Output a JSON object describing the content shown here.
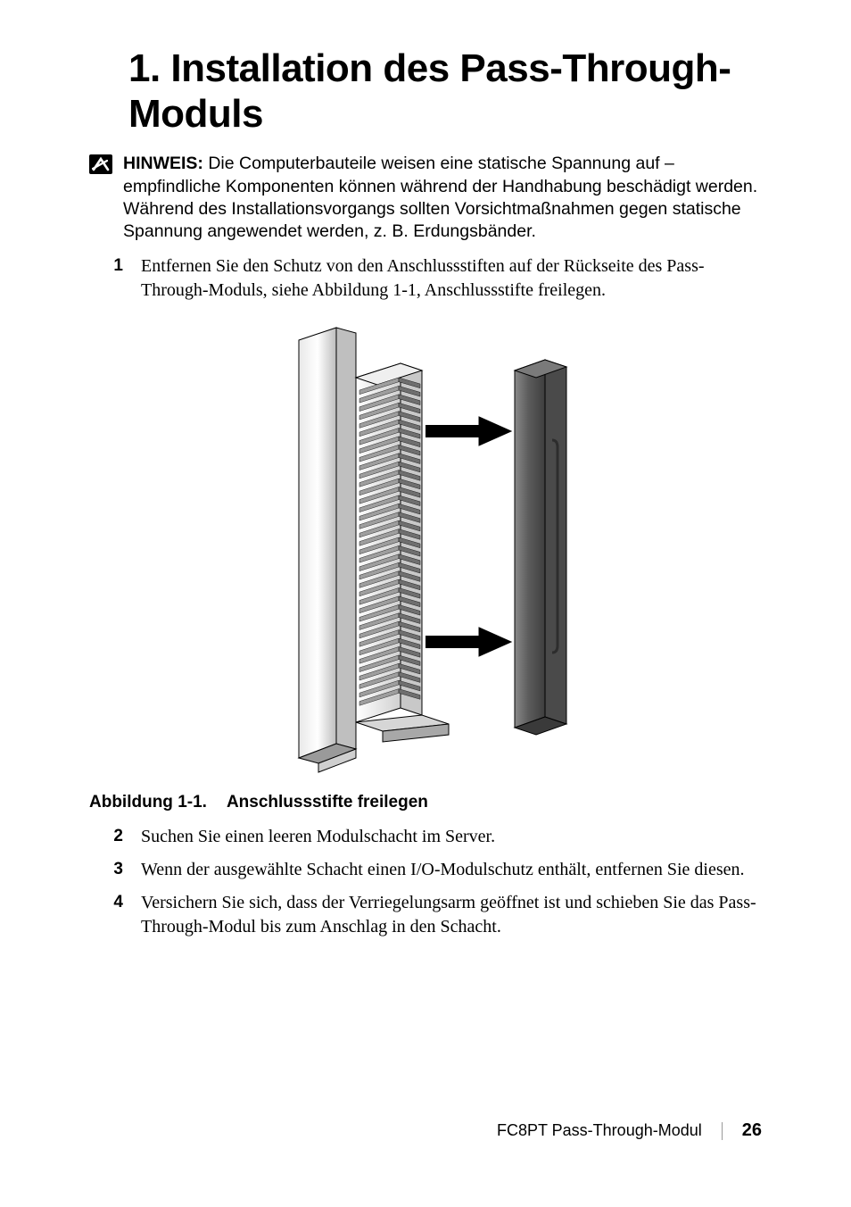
{
  "heading": "1. Installation des Pass-Through-Moduls",
  "note": {
    "label": "HINWEIS:",
    "text": " Die Computerbauteile weisen eine statische Spannung auf – empfindliche Komponenten können während der Handhabung beschädigt werden. Während des Installationsvorgangs sollten Vorsichtmaßnahmen gegen statische Spannung angewendet werden, z. B. Erdungsbänder."
  },
  "steps": [
    {
      "n": "1",
      "text": "Entfernen Sie den Schutz von den Anschlussstiften auf der Rückseite des Pass-Through-Moduls, siehe Abbildung 1-1, Anschlussstifte freilegen."
    },
    {
      "n": "2",
      "text": "Suchen Sie einen leeren Modulschacht im Server."
    },
    {
      "n": "3",
      "text": "Wenn der ausgewählte Schacht einen I/O-Modulschutz enthält, entfernen Sie diesen."
    },
    {
      "n": "4",
      "text": "Versichern Sie sich, dass der Verriegelungsarm geöffnet ist und schieben Sie das Pass-Through-Modul bis zum Anschlag in den Schacht."
    }
  ],
  "caption": {
    "num": "Abbildung 1-1.",
    "title": "Anschlussstifte freilegen"
  },
  "footer": {
    "title": "FC8PT Pass-Through-Modul",
    "page": "26"
  },
  "colors": {
    "fig_border": "#000000",
    "fig_light": "#f2f2f2",
    "fig_mid": "#cfcfcf",
    "fig_shadow": "#9a9a9a",
    "fig_dark": "#4a4a4a",
    "fig_cover": "#6f6f6f"
  }
}
